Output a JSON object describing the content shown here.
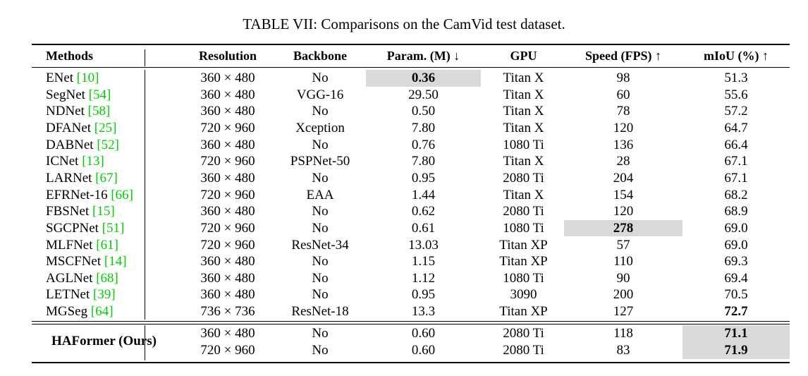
{
  "caption": "TABLE VII: Comparisons on the CamVid test dataset.",
  "headers": {
    "methods": "Methods",
    "resolution": "Resolution",
    "backbone": "Backbone",
    "param": "Param. (M) ↓",
    "gpu": "GPU",
    "speed": "Speed (FPS) ↑",
    "miou": "mIoU (%) ↑"
  },
  "rows": [
    {
      "name": "ENet",
      "ref": "[10]",
      "resolution": "360 × 480",
      "backbone": "No",
      "param": "0.36",
      "gpu": "Titan X",
      "speed": "98",
      "miou": "51.3"
    },
    {
      "name": "SegNet",
      "ref": "[54]",
      "resolution": "360 × 480",
      "backbone": "VGG-16",
      "param": "29.50",
      "gpu": "Titan X",
      "speed": "60",
      "miou": "55.6"
    },
    {
      "name": "NDNet",
      "ref": "[58]",
      "resolution": "360 × 480",
      "backbone": "No",
      "param": "0.50",
      "gpu": "Titan X",
      "speed": "78",
      "miou": "57.2"
    },
    {
      "name": "DFANet",
      "ref": "[25]",
      "resolution": "720 × 960",
      "backbone": "Xception",
      "param": "7.80",
      "gpu": "Titan X",
      "speed": "120",
      "miou": "64.7"
    },
    {
      "name": "DABNet",
      "ref": "[52]",
      "resolution": "360 × 480",
      "backbone": "No",
      "param": "0.76",
      "gpu": "1080 Ti",
      "speed": "136",
      "miou": "66.4"
    },
    {
      "name": "ICNet",
      "ref": "[13]",
      "resolution": "720 × 960",
      "backbone": "PSPNet-50",
      "param": "7.80",
      "gpu": "Titan X",
      "speed": "28",
      "miou": "67.1"
    },
    {
      "name": "LARNet",
      "ref": "[67]",
      "resolution": "360 × 480",
      "backbone": "No",
      "param": "0.95",
      "gpu": "2080 Ti",
      "speed": "204",
      "miou": "67.1"
    },
    {
      "name": "EFRNet-16",
      "ref": "[66]",
      "resolution": "720 × 960",
      "backbone": "EAA",
      "param": "1.44",
      "gpu": "Titan X",
      "speed": "154",
      "miou": "68.2"
    },
    {
      "name": "FBSNet",
      "ref": "[15]",
      "resolution": "360 × 480",
      "backbone": "No",
      "param": "0.62",
      "gpu": "2080 Ti",
      "speed": "120",
      "miou": "68.9"
    },
    {
      "name": "SGCPNet",
      "ref": "[51]",
      "resolution": "720 × 960",
      "backbone": "No",
      "param": "0.61",
      "gpu": "1080 Ti",
      "speed": "278",
      "miou": "69.0"
    },
    {
      "name": "MLFNet",
      "ref": "[61]",
      "resolution": "720 × 960",
      "backbone": "ResNet-34",
      "param": "13.03",
      "gpu": "Titan XP",
      "speed": "57",
      "miou": "69.0"
    },
    {
      "name": "MSCFNet",
      "ref": "[14]",
      "resolution": "360 × 480",
      "backbone": "No",
      "param": "1.15",
      "gpu": "Titan XP",
      "speed": "110",
      "miou": "69.3"
    },
    {
      "name": "AGLNet",
      "ref": "[68]",
      "resolution": "360 × 480",
      "backbone": "No",
      "param": "1.12",
      "gpu": "1080 Ti",
      "speed": "90",
      "miou": "69.4"
    },
    {
      "name": "LETNet",
      "ref": "[39]",
      "resolution": "360 × 480",
      "backbone": "No",
      "param": "0.95",
      "gpu": "3090",
      "speed": "200",
      "miou": "70.5"
    },
    {
      "name": "MGSeg",
      "ref": "[64]",
      "resolution": "736 × 736",
      "backbone": "ResNet-18",
      "param": "13.3",
      "gpu": "Titan XP",
      "speed": "127",
      "miou": "72.7"
    }
  ],
  "ours": {
    "name": "HAFormer (Ours)",
    "rows": [
      {
        "resolution": "360 × 480",
        "backbone": "No",
        "param": "0.60",
        "gpu": "2080 Ti",
        "speed": "118",
        "miou": "71.1"
      },
      {
        "resolution": "720 × 960",
        "backbone": "No",
        "param": "0.60",
        "gpu": "2080 Ti",
        "speed": "83",
        "miou": "71.9"
      }
    ]
  }
}
